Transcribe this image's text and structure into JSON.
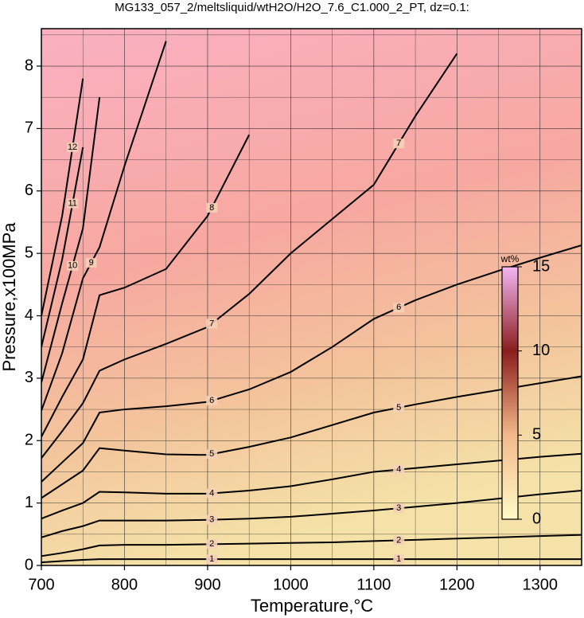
{
  "chart_data": {
    "type": "contour",
    "title": "MG133_057_2/meltsliquid/wtH2O/H2O_7.6_C1.000_2_PT, dz=0.1:",
    "x_label": "Temperature,°C",
    "y_label": "Pressure,x100MPa",
    "x": [
      700,
      725,
      750,
      770,
      800,
      850,
      900,
      950,
      1000,
      1050,
      1100,
      1150,
      1200,
      1250,
      1300,
      1350
    ],
    "xlim": [
      700,
      1350
    ],
    "ylim": [
      0,
      8.6
    ],
    "xticks": [
      700,
      800,
      900,
      1000,
      1100,
      1200,
      1300
    ],
    "minor_xticks": [
      750,
      850,
      950,
      1050,
      1150,
      1250
    ],
    "yticks": [
      0,
      1,
      2,
      3,
      4,
      5,
      6,
      7,
      8
    ],
    "minor_yticks": [
      0.5,
      1.5,
      2.5,
      3.5,
      4.5,
      5.5,
      6.5,
      7.5,
      8.5
    ],
    "grid": true,
    "line_color": "#000000",
    "series": [
      {
        "name": "1",
        "values": [
          0.05,
          0.07,
          0.09,
          0.1,
          0.1,
          0.1,
          0.1,
          0.1,
          0.1,
          0.1,
          0.1,
          0.1,
          0.1,
          0.1,
          0.1,
          0.1
        ]
      },
      {
        "name": "2",
        "values": [
          0.15,
          0.2,
          0.26,
          0.32,
          0.33,
          0.33,
          0.34,
          0.35,
          0.36,
          0.37,
          0.39,
          0.41,
          0.43,
          0.45,
          0.47,
          0.49
        ]
      },
      {
        "name": "3",
        "values": [
          0.45,
          0.55,
          0.63,
          0.72,
          0.72,
          0.72,
          0.73,
          0.75,
          0.78,
          0.83,
          0.88,
          0.94,
          1.0,
          1.07,
          1.14,
          1.2
        ]
      },
      {
        "name": "4",
        "values": [
          0.75,
          0.88,
          1.0,
          1.18,
          1.17,
          1.15,
          1.15,
          1.2,
          1.27,
          1.38,
          1.5,
          1.56,
          1.62,
          1.68,
          1.74,
          1.79
        ]
      },
      {
        "name": "5",
        "values": [
          1.08,
          1.3,
          1.52,
          1.88,
          1.84,
          1.78,
          1.77,
          1.9,
          2.05,
          2.25,
          2.45,
          2.58,
          2.7,
          2.81,
          2.92,
          3.03
        ]
      },
      {
        "name": "6",
        "values": [
          1.34,
          1.65,
          1.96,
          2.45,
          2.5,
          2.55,
          2.62,
          2.82,
          3.1,
          3.5,
          3.95,
          4.25,
          4.5,
          4.72,
          4.93,
          5.13
        ]
      },
      {
        "name": "7",
        "values": [
          1.72,
          2.15,
          2.6,
          3.12,
          3.3,
          3.55,
          3.82,
          4.35,
          5.0,
          5.55,
          6.1,
          7.2,
          8.2,
          null,
          null,
          null
        ]
      },
      {
        "name": "8",
        "values": [
          2.06,
          2.7,
          3.3,
          4.33,
          4.45,
          4.75,
          5.6,
          6.9,
          null,
          null,
          null,
          null,
          null,
          null,
          null,
          null
        ]
      },
      {
        "name": "9",
        "values": [
          2.48,
          3.4,
          4.6,
          5.1,
          6.4,
          8.4,
          null,
          null,
          null,
          null,
          null,
          null,
          null,
          null,
          null,
          null
        ]
      },
      {
        "name": "10",
        "values": [
          2.93,
          4.2,
          5.4,
          7.5,
          null,
          null,
          null,
          null,
          null,
          null,
          null,
          null,
          null,
          null,
          null,
          null
        ]
      },
      {
        "name": "11",
        "values": [
          3.5,
          4.9,
          6.7,
          null,
          null,
          null,
          null,
          null,
          null,
          null,
          null,
          null,
          null,
          null,
          null,
          null
        ]
      },
      {
        "name": "12",
        "values": [
          4.0,
          5.6,
          7.8,
          null,
          null,
          null,
          null,
          null,
          null,
          null,
          null,
          null,
          null,
          null,
          null,
          null
        ]
      }
    ],
    "colorbar": {
      "label": "wt%",
      "lim": [
        0,
        15
      ],
      "ticks": [
        0,
        5,
        10,
        15
      ],
      "colors": [
        "#fffbc8",
        "#f3b98a",
        "#8b1d1d",
        "#f4b6f4"
      ]
    }
  }
}
